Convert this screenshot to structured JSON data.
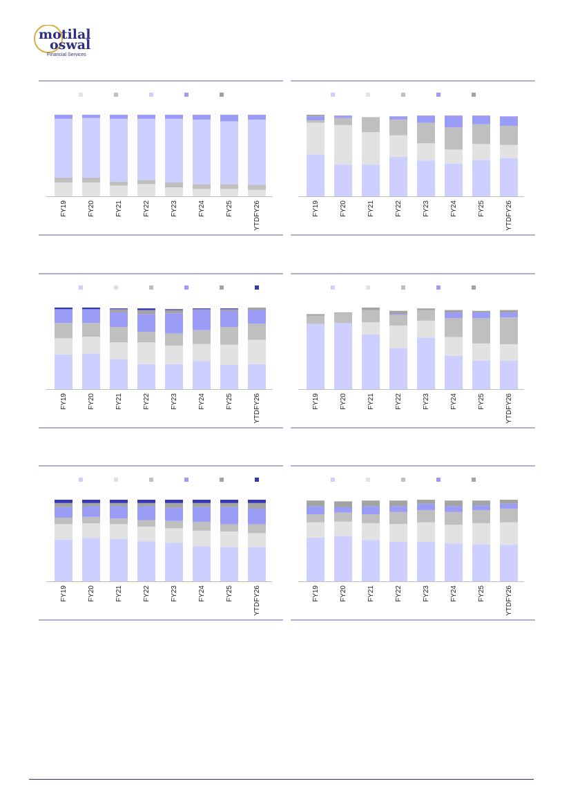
{
  "brand": {
    "line1": "motilal",
    "line2": "oswal",
    "tagline": "Financial Services",
    "text_color": "#2f2f80",
    "ring_color": "#d4ad3c"
  },
  "colors": {
    "c1": "#cccfff",
    "c2": "#e2e2e2",
    "c3": "#c0bfbf",
    "c4": "#9a9cf6",
    "c5": "#a3a3a3",
    "c6": "#3535b8"
  },
  "chart_data": [
    {
      "type": "bar",
      "stacked": true,
      "categories": [
        "FY19",
        "FY20",
        "FY21",
        "FY22",
        "FY23",
        "FY24",
        "FY25",
        "YTDFY26"
      ],
      "legend_keys": [
        "c2",
        "c3",
        "c1",
        "c4",
        "c5"
      ],
      "series": [
        {
          "color_key": "c2",
          "values": [
            17,
            17,
            13,
            15,
            11,
            9,
            9,
            8
          ]
        },
        {
          "color_key": "c3",
          "values": [
            6,
            6,
            5,
            5,
            6,
            6,
            6,
            6
          ]
        },
        {
          "color_key": "c1",
          "values": [
            72,
            73,
            77,
            75,
            78,
            79,
            77,
            80
          ]
        },
        {
          "color_key": "c4",
          "values": [
            5,
            4,
            5,
            5,
            5,
            6,
            8,
            6
          ]
        }
      ]
    },
    {
      "type": "bar",
      "stacked": true,
      "categories": [
        "FY19",
        "FY20",
        "FY21",
        "FY22",
        "FY23",
        "FY24",
        "FY25",
        "YTDFY26"
      ],
      "legend_keys": [
        "c1",
        "c2",
        "c3",
        "c4",
        "c5"
      ],
      "series": [
        {
          "color_key": "c1",
          "values": [
            53,
            40,
            40,
            50,
            45,
            41,
            46,
            48
          ]
        },
        {
          "color_key": "c2",
          "values": [
            40,
            50,
            41,
            27,
            22,
            18,
            20,
            17
          ]
        },
        {
          "color_key": "c3",
          "values": [
            3,
            9,
            19,
            20,
            26,
            28,
            25,
            24
          ]
        },
        {
          "color_key": "c4",
          "values": [
            5,
            3,
            0,
            4,
            9,
            15,
            11,
            12
          ]
        },
        {
          "color_key": "c5",
          "values": [
            2,
            0,
            0,
            0,
            0,
            0,
            0,
            0
          ]
        }
      ]
    },
    {
      "type": "bar",
      "stacked": true,
      "categories": [
        "FY19",
        "FY20",
        "FY21",
        "FY22",
        "FY23",
        "FY24",
        "FY25",
        "YTDFY26"
      ],
      "legend_keys": [
        "c1",
        "c2",
        "c3",
        "c4",
        "c5",
        "c6"
      ],
      "series": [
        {
          "color_key": "c1",
          "values": [
            43,
            44,
            37,
            31,
            31,
            35,
            30,
            31
          ]
        },
        {
          "color_key": "c2",
          "values": [
            20,
            21,
            21,
            27,
            23,
            21,
            25,
            30
          ]
        },
        {
          "color_key": "c3",
          "values": [
            19,
            17,
            19,
            13,
            15,
            17,
            22,
            20
          ]
        },
        {
          "color_key": "c4",
          "values": [
            17,
            17,
            18,
            22,
            25,
            25,
            20,
            17
          ]
        },
        {
          "color_key": "c5",
          "values": [
            0,
            0,
            4,
            5,
            4,
            1,
            2,
            3
          ]
        },
        {
          "color_key": "c6",
          "values": [
            2,
            2,
            1,
            2,
            1,
            1,
            1,
            0
          ]
        }
      ]
    },
    {
      "type": "bar",
      "stacked": true,
      "categories": [
        "FY19",
        "FY20",
        "FY21",
        "FY22",
        "FY23",
        "FY24",
        "FY25",
        "YTDFY26"
      ],
      "legend_keys": [
        "c1",
        "c2",
        "c3",
        "c4",
        "c5"
      ],
      "series": [
        {
          "color_key": "c1",
          "values": [
            80,
            81,
            67,
            50,
            63,
            41,
            35,
            35
          ]
        },
        {
          "color_key": "c2",
          "values": [
            0,
            0,
            15,
            28,
            21,
            23,
            21,
            20
          ]
        },
        {
          "color_key": "c3",
          "values": [
            10,
            12,
            15,
            13,
            13,
            23,
            31,
            33
          ]
        },
        {
          "color_key": "c4",
          "values": [
            0,
            0,
            0,
            1,
            0,
            7,
            7,
            6
          ]
        },
        {
          "color_key": "c5",
          "values": [
            2,
            1,
            3,
            4,
            2,
            3,
            2,
            3
          ]
        }
      ]
    },
    {
      "type": "bar",
      "stacked": true,
      "categories": [
        "FY19",
        "FY20",
        "FY21",
        "FY22",
        "FY23",
        "FY24",
        "FY25",
        "YTDFY26"
      ],
      "legend_keys": [
        "c1",
        "c2",
        "c3",
        "c4",
        "c5",
        "c6"
      ],
      "series": [
        {
          "color_key": "c1",
          "values": [
            51,
            53,
            52,
            49,
            47,
            43,
            42,
            42
          ]
        },
        {
          "color_key": "c2",
          "values": [
            19,
            18,
            18,
            18,
            18,
            19,
            19,
            17
          ]
        },
        {
          "color_key": "c3",
          "values": [
            8,
            8,
            7,
            8,
            9,
            11,
            9,
            11
          ]
        },
        {
          "color_key": "c4",
          "values": [
            13,
            13,
            15,
            17,
            16,
            18,
            21,
            19
          ]
        },
        {
          "color_key": "c5",
          "values": [
            5,
            4,
            4,
            4,
            6,
            5,
            5,
            7
          ]
        },
        {
          "color_key": "c6",
          "values": [
            4,
            4,
            4,
            4,
            4,
            4,
            4,
            4
          ]
        }
      ]
    },
    {
      "type": "bar",
      "stacked": true,
      "categories": [
        "FY19",
        "FY20",
        "FY21",
        "FY22",
        "FY23",
        "FY24",
        "FY25",
        "YTDFY26"
      ],
      "legend_keys": [
        "c1",
        "c2",
        "c3",
        "c4",
        "c5"
      ],
      "series": [
        {
          "color_key": "c1",
          "values": [
            54,
            56,
            51,
            49,
            49,
            47,
            46,
            45
          ]
        },
        {
          "color_key": "c2",
          "values": [
            19,
            18,
            21,
            22,
            24,
            23,
            26,
            28
          ]
        },
        {
          "color_key": "c3",
          "values": [
            10,
            11,
            11,
            15,
            15,
            16,
            16,
            17
          ]
        },
        {
          "color_key": "c4",
          "values": [
            10,
            7,
            10,
            7,
            8,
            7,
            6,
            6
          ]
        },
        {
          "color_key": "c5",
          "values": [
            7,
            7,
            7,
            7,
            5,
            7,
            6,
            5
          ]
        }
      ]
    }
  ]
}
